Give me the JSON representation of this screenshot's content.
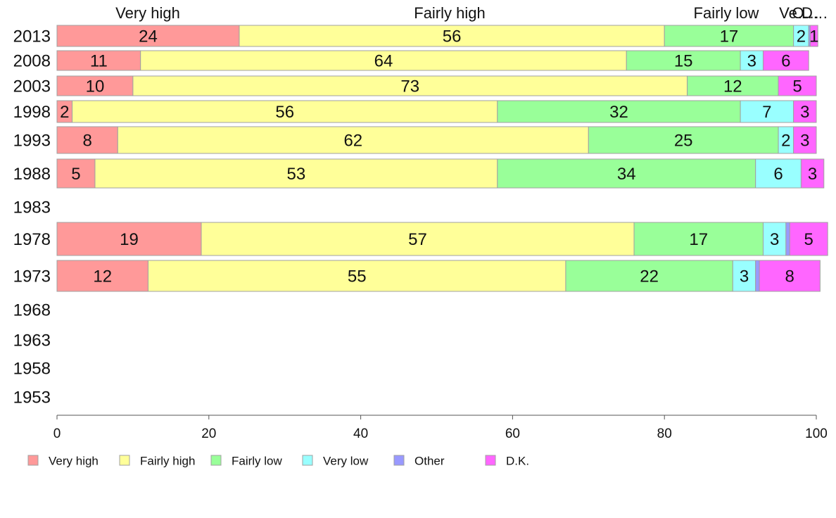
{
  "chart_data": {
    "type": "bar",
    "orientation": "horizontal-stacked",
    "xlim": [
      0,
      100
    ],
    "xticks": [
      0,
      20,
      40,
      60,
      80,
      100
    ],
    "grid": false,
    "legend_position": "bottom",
    "category_labels_top": [
      "Very high",
      "Fairly high",
      "Fairly low",
      "Ve…",
      "O…",
      "D…"
    ],
    "series": [
      {
        "name": "Very high",
        "color": "#ff9999"
      },
      {
        "name": "Fairly high",
        "color": "#ffff99"
      },
      {
        "name": "Fairly low",
        "color": "#99ff99"
      },
      {
        "name": "Very low",
        "color": "#99ffff"
      },
      {
        "name": "Other",
        "color": "#9999ff"
      },
      {
        "name": "D.K.",
        "color": "#ff66ff"
      }
    ],
    "rows": [
      {
        "year": "2013",
        "values": [
          24,
          56,
          17,
          2,
          0.2,
          1
        ],
        "labels": [
          "24",
          "56",
          "17",
          "2",
          "",
          "1"
        ]
      },
      {
        "year": "2008",
        "values": [
          11,
          64,
          15,
          3,
          0,
          6
        ],
        "labels": [
          "11",
          "64",
          "15",
          "3",
          "",
          "6"
        ]
      },
      {
        "year": "2003",
        "values": [
          10,
          73,
          12,
          0,
          0,
          5
        ],
        "labels": [
          "10",
          "73",
          "12",
          "",
          "",
          "5"
        ]
      },
      {
        "year": "1998",
        "values": [
          2,
          56,
          32,
          7,
          0,
          3
        ],
        "labels": [
          "2",
          "56",
          "32",
          "7",
          "",
          "3"
        ]
      },
      {
        "year": "1993",
        "values": [
          8,
          62,
          25,
          2,
          0,
          3
        ],
        "labels": [
          "8",
          "62",
          "25",
          "2",
          "",
          "3"
        ]
      },
      {
        "year": "1988",
        "values": [
          5,
          53,
          34,
          6,
          0,
          3
        ],
        "labels": [
          "5",
          "53",
          "34",
          "6",
          "",
          "3"
        ]
      },
      {
        "year": "1983",
        "values": [],
        "labels": []
      },
      {
        "year": "1978",
        "values": [
          19,
          57,
          17,
          3,
          0.5,
          5
        ],
        "labels": [
          "19",
          "57",
          "17",
          "3",
          "",
          "5"
        ]
      },
      {
        "year": "1973",
        "values": [
          12,
          55,
          22,
          3,
          0.5,
          8
        ],
        "labels": [
          "12",
          "55",
          "22",
          "3",
          "",
          "8"
        ]
      },
      {
        "year": "1968",
        "values": [],
        "labels": []
      },
      {
        "year": "1963",
        "values": [],
        "labels": []
      },
      {
        "year": "1958",
        "values": [],
        "labels": []
      },
      {
        "year": "1953",
        "values": [],
        "labels": []
      }
    ]
  }
}
